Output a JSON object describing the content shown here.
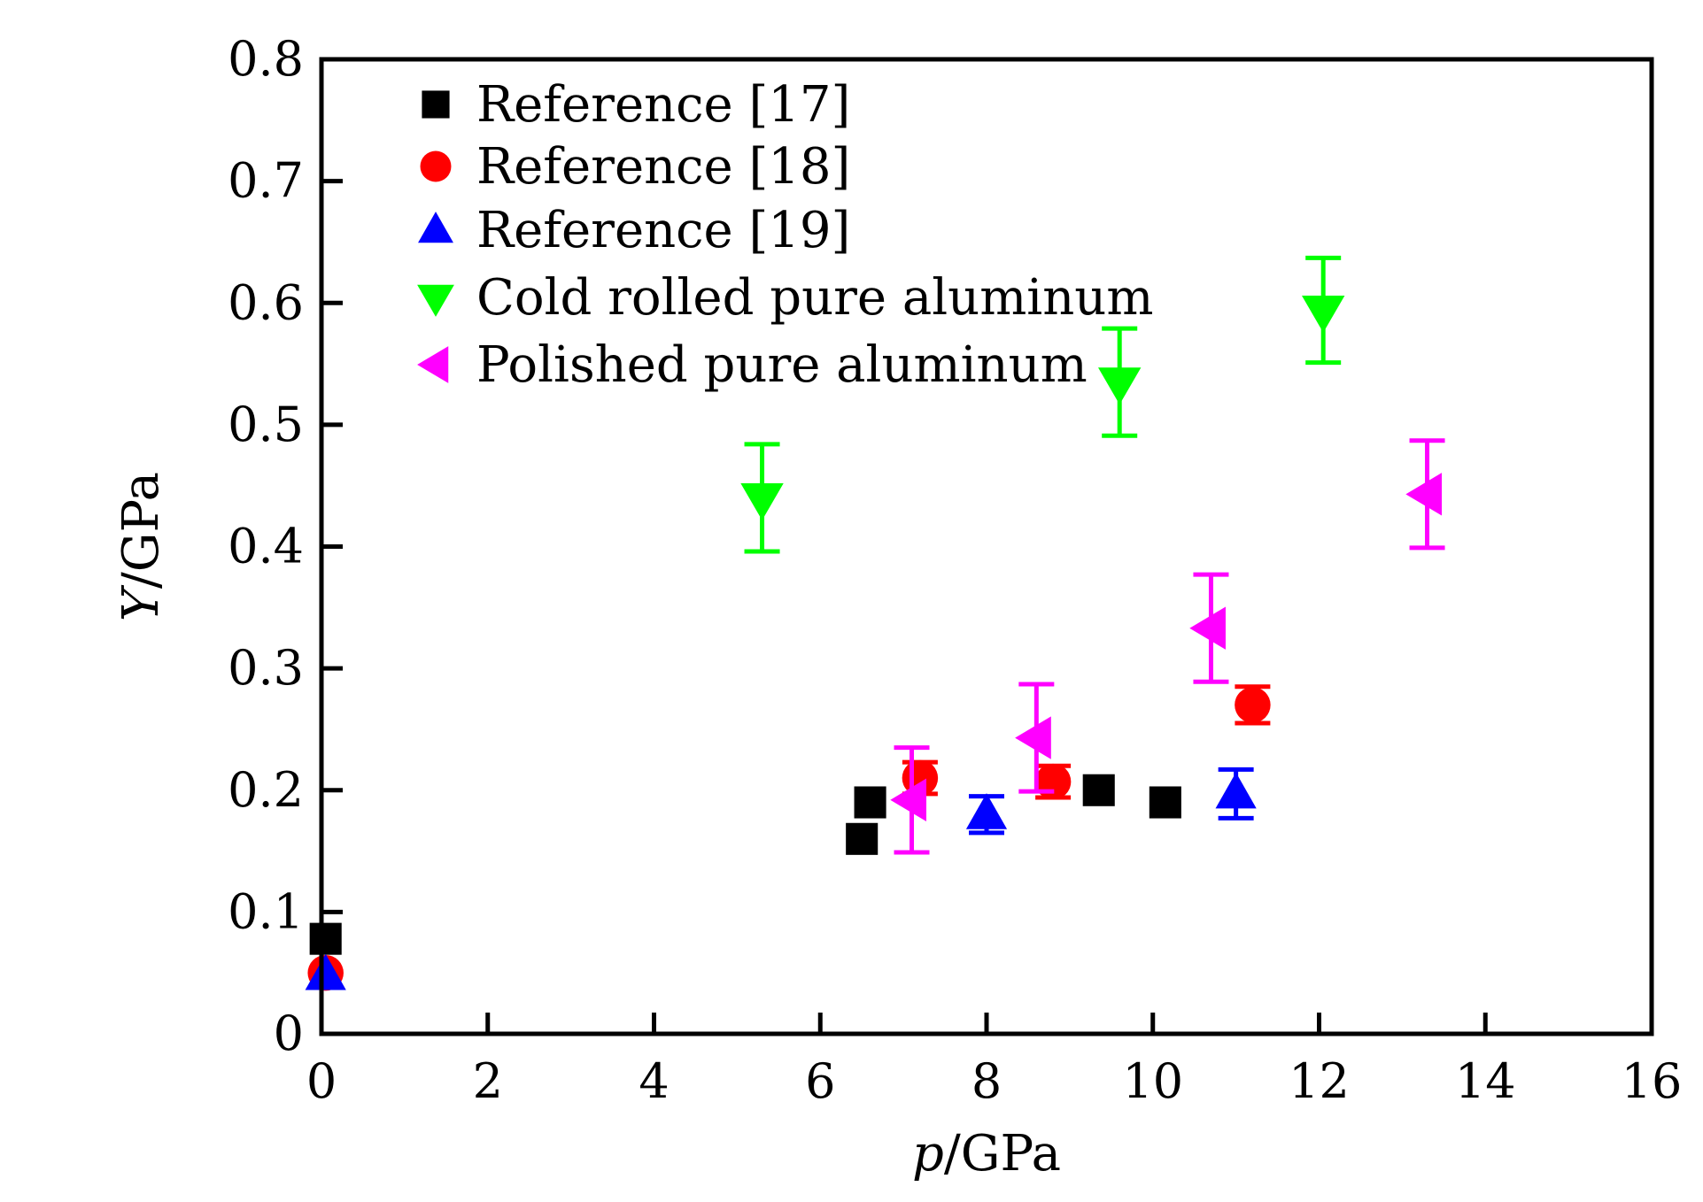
{
  "chart_data": {
    "type": "scatter",
    "xlabel": "p/GPa",
    "xlabel_parts": {
      "var": "p",
      "unit": "/GPa"
    },
    "ylabel": "Y/GPa",
    "ylabel_parts": {
      "var": "Y",
      "unit": "/GPa"
    },
    "xlim": [
      0,
      16
    ],
    "ylim": [
      0,
      0.8
    ],
    "xticks": [
      0,
      2,
      4,
      6,
      8,
      10,
      12,
      14,
      16
    ],
    "yticks": [
      0,
      0.1,
      0.2,
      0.3,
      0.4,
      0.5,
      0.6,
      0.7,
      0.8
    ],
    "xtick_labels": [
      "0",
      "2",
      "4",
      "6",
      "8",
      "10",
      "12",
      "14",
      "16"
    ],
    "ytick_labels": [
      "0",
      "0.1",
      "0.2",
      "0.3",
      "0.4",
      "0.5",
      "0.6",
      "0.7",
      "0.8"
    ],
    "grid": false,
    "legend_position": "top-left",
    "series": [
      {
        "name": "Reference [17]",
        "marker": "square",
        "color": "#000000",
        "points": [
          {
            "x": 0.05,
            "y": 0.078
          },
          {
            "x": 6.5,
            "y": 0.16
          },
          {
            "x": 6.6,
            "y": 0.19
          },
          {
            "x": 9.35,
            "y": 0.2
          },
          {
            "x": 10.15,
            "y": 0.19
          }
        ]
      },
      {
        "name": "Reference [18]",
        "marker": "circle",
        "color": "#ff0000",
        "points": [
          {
            "x": 0.05,
            "y": 0.05
          },
          {
            "x": 7.2,
            "y": 0.21,
            "err": 0.013
          },
          {
            "x": 8.8,
            "y": 0.207,
            "err": 0.013
          },
          {
            "x": 11.2,
            "y": 0.27,
            "err": 0.015
          }
        ]
      },
      {
        "name": "Reference [19]",
        "marker": "triangle-up",
        "color": "#0000ff",
        "points": [
          {
            "x": 0.05,
            "y": 0.048
          },
          {
            "x": 8.0,
            "y": 0.18,
            "err": 0.015
          },
          {
            "x": 11.0,
            "y": 0.197,
            "err": 0.02
          }
        ]
      },
      {
        "name": "Cold rolled pure aluminum",
        "marker": "triangle-down",
        "color": "#00ff00",
        "points": [
          {
            "x": 5.3,
            "y": 0.44,
            "err": 0.044
          },
          {
            "x": 9.6,
            "y": 0.535,
            "err": 0.044
          },
          {
            "x": 12.05,
            "y": 0.594,
            "err": 0.043
          }
        ]
      },
      {
        "name": "Polished pure aluminum",
        "marker": "triangle-left",
        "color": "#ff00ff",
        "points": [
          {
            "x": 7.1,
            "y": 0.192,
            "err": 0.043
          },
          {
            "x": 8.6,
            "y": 0.243,
            "err": 0.044
          },
          {
            "x": 10.7,
            "y": 0.333,
            "err": 0.044
          },
          {
            "x": 13.3,
            "y": 0.443,
            "err": 0.044
          }
        ]
      }
    ]
  }
}
